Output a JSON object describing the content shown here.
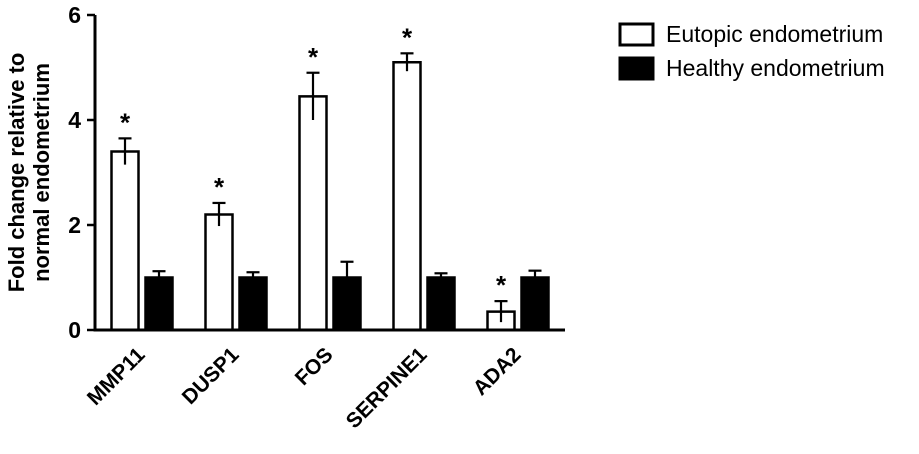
{
  "chart_data": {
    "type": "bar",
    "title": "",
    "categories": [
      "MMP11",
      "DUSP1",
      "FOS",
      "SERPINE1",
      "ADA2"
    ],
    "series": [
      {
        "name": "Eutopic endometrium",
        "fill": "#ffffff",
        "stroke": "#000000",
        "values": [
          3.4,
          2.2,
          4.45,
          5.1,
          0.35
        ],
        "errors": [
          0.25,
          0.22,
          0.45,
          0.17,
          0.2
        ],
        "significance": [
          "*",
          "*",
          "*",
          "*",
          "*"
        ]
      },
      {
        "name": "Healthy endometrium",
        "fill": "#000000",
        "stroke": "#000000",
        "values": [
          1.0,
          1.0,
          1.0,
          1.0,
          1.0
        ],
        "errors": [
          0.12,
          0.1,
          0.3,
          0.08,
          0.13
        ],
        "significance": [
          "",
          "",
          "",
          "",
          ""
        ]
      }
    ],
    "ylabel": "Fold change relative to normal endometrium",
    "ylabel_lines": [
      "Fold change relative to",
      "normal endometrium"
    ],
    "xlabel": "",
    "ylim": [
      0,
      6
    ],
    "yticks": [
      0,
      2,
      4,
      6
    ],
    "grid": false,
    "legend_position": "top-right",
    "colors": {
      "axis": "#000000",
      "eutopic_fill": "#ffffff",
      "healthy_fill": "#000000",
      "background": "#ffffff"
    }
  }
}
